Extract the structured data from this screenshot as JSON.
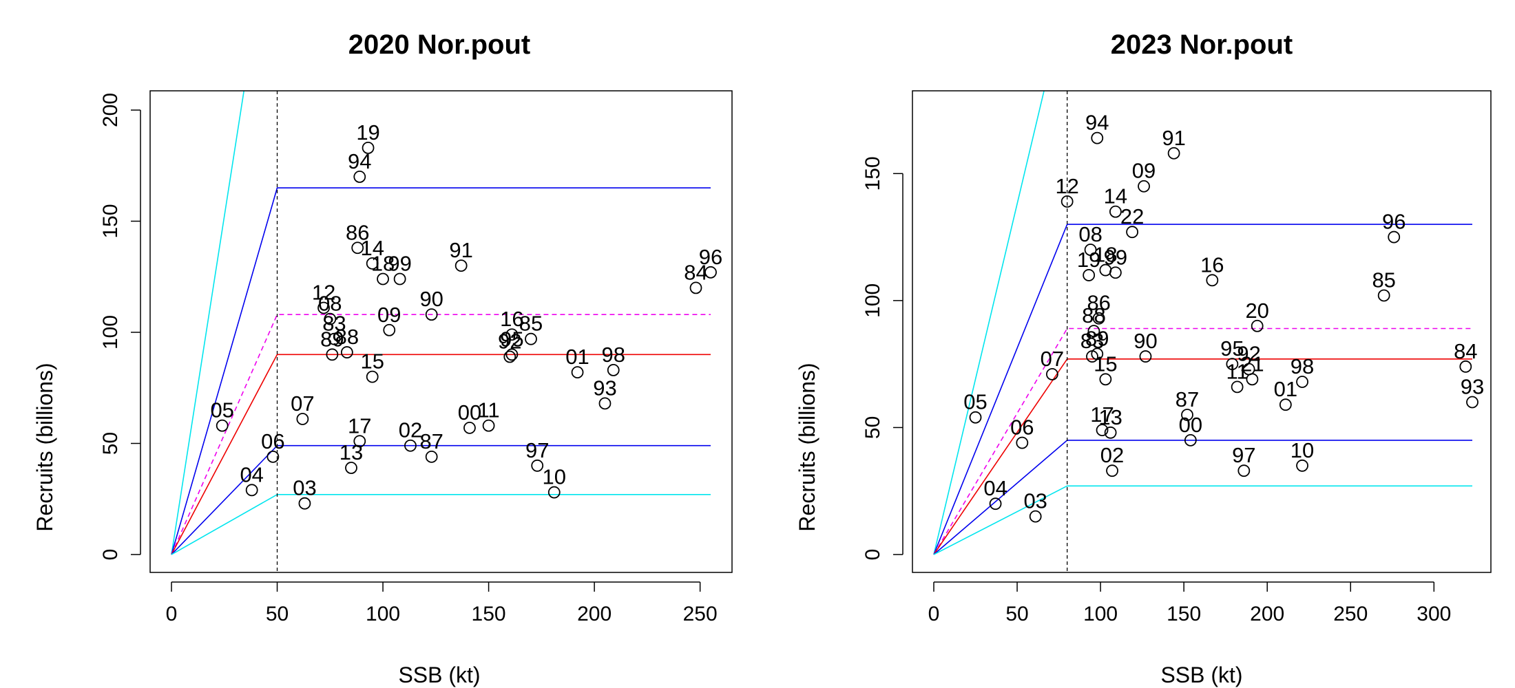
{
  "chart_data": [
    {
      "type": "scatter",
      "title": "2020 Nor.pout",
      "xlabel": "SSB (kt)",
      "ylabel": "Recruits (billions)",
      "xlim": [
        0,
        255
      ],
      "ylim": [
        0,
        200
      ],
      "xticks": [
        0,
        50,
        100,
        150,
        200,
        250
      ],
      "yticks": [
        0,
        50,
        100,
        150,
        200
      ],
      "breakpoint_ssb": 50,
      "points": [
        {
          "label": "19",
          "x": 93,
          "y": 183
        },
        {
          "label": "94",
          "x": 89,
          "y": 170
        },
        {
          "label": "86",
          "x": 88,
          "y": 138
        },
        {
          "label": "14",
          "x": 95,
          "y": 131
        },
        {
          "label": "18",
          "x": 100,
          "y": 124
        },
        {
          "label": "99",
          "x": 108,
          "y": 124
        },
        {
          "label": "91",
          "x": 137,
          "y": 130
        },
        {
          "label": "84",
          "x": 248,
          "y": 120
        },
        {
          "label": "96",
          "x": 255,
          "y": 127
        },
        {
          "label": "12",
          "x": 72,
          "y": 111
        },
        {
          "label": "08",
          "x": 75,
          "y": 106
        },
        {
          "label": "90",
          "x": 123,
          "y": 108
        },
        {
          "label": "16",
          "x": 161,
          "y": 99
        },
        {
          "label": "85",
          "x": 170,
          "y": 97
        },
        {
          "label": "09",
          "x": 103,
          "y": 101
        },
        {
          "label": "83",
          "x": 77,
          "y": 97
        },
        {
          "label": "88",
          "x": 83,
          "y": 91
        },
        {
          "label": "89",
          "x": 76,
          "y": 90
        },
        {
          "label": "92",
          "x": 160,
          "y": 89
        },
        {
          "label": "95",
          "x": 161,
          "y": 90
        },
        {
          "label": "15",
          "x": 95,
          "y": 80
        },
        {
          "label": "98",
          "x": 209,
          "y": 83
        },
        {
          "label": "01",
          "x": 192,
          "y": 82
        },
        {
          "label": "93",
          "x": 205,
          "y": 68
        },
        {
          "label": "05",
          "x": 24,
          "y": 58
        },
        {
          "label": "07",
          "x": 62,
          "y": 61
        },
        {
          "label": "00",
          "x": 141,
          "y": 57
        },
        {
          "label": "11",
          "x": 150,
          "y": 58
        },
        {
          "label": "06",
          "x": 48,
          "y": 44
        },
        {
          "label": "17",
          "x": 89,
          "y": 51
        },
        {
          "label": "02",
          "x": 113,
          "y": 49
        },
        {
          "label": "87",
          "x": 123,
          "y": 44
        },
        {
          "label": "13",
          "x": 85,
          "y": 39
        },
        {
          "label": "97",
          "x": 173,
          "y": 40
        },
        {
          "label": "04",
          "x": 38,
          "y": 29
        },
        {
          "label": "03",
          "x": 63,
          "y": 23
        },
        {
          "label": "10",
          "x": 181,
          "y": 28
        }
      ],
      "lines": [
        {
          "color": "#00e5ee",
          "dash": false,
          "points": [
            [
              0,
              0
            ],
            [
              34.5,
              210
            ]
          ]
        },
        {
          "color": "#0000ee",
          "dash": false,
          "points": [
            [
              0,
              0
            ],
            [
              50,
              165
            ],
            [
              255,
              165
            ]
          ]
        },
        {
          "color": "#ee00ee",
          "dash": true,
          "points": [
            [
              0,
              0
            ],
            [
              50,
              108
            ],
            [
              255,
              108
            ]
          ]
        },
        {
          "color": "#ee0000",
          "dash": false,
          "points": [
            [
              0,
              0
            ],
            [
              50,
              90
            ],
            [
              255,
              90
            ]
          ]
        },
        {
          "color": "#0000ee",
          "dash": false,
          "points": [
            [
              0,
              0
            ],
            [
              50,
              49
            ],
            [
              255,
              49
            ]
          ]
        },
        {
          "color": "#00e5ee",
          "dash": false,
          "points": [
            [
              0,
              0
            ],
            [
              50,
              27
            ],
            [
              255,
              27
            ]
          ]
        }
      ]
    },
    {
      "type": "scatter",
      "title": "2023 Nor.pout",
      "xlabel": "SSB (kt)",
      "ylabel": "Recruits (billions)",
      "xlim": [
        0,
        323
      ],
      "ylim": [
        0,
        175
      ],
      "xticks": [
        0,
        50,
        100,
        150,
        200,
        250,
        300
      ],
      "yticks": [
        0,
        50,
        100,
        150
      ],
      "breakpoint_ssb": 80,
      "points": [
        {
          "label": "94",
          "x": 98,
          "y": 164
        },
        {
          "label": "91",
          "x": 144,
          "y": 158
        },
        {
          "label": "12",
          "x": 80,
          "y": 139
        },
        {
          "label": "09",
          "x": 126,
          "y": 145
        },
        {
          "label": "14",
          "x": 109,
          "y": 135
        },
        {
          "label": "22",
          "x": 119,
          "y": 127
        },
        {
          "label": "08",
          "x": 94,
          "y": 120
        },
        {
          "label": "18",
          "x": 103,
          "y": 112
        },
        {
          "label": "19",
          "x": 93,
          "y": 110
        },
        {
          "label": "99",
          "x": 109,
          "y": 111
        },
        {
          "label": "16",
          "x": 167,
          "y": 108
        },
        {
          "label": "96",
          "x": 276,
          "y": 125
        },
        {
          "label": "85",
          "x": 270,
          "y": 102
        },
        {
          "label": "86",
          "x": 99,
          "y": 93
        },
        {
          "label": "88",
          "x": 96,
          "y": 88
        },
        {
          "label": "83",
          "x": 95,
          "y": 78
        },
        {
          "label": "89",
          "x": 98,
          "y": 79
        },
        {
          "label": "90",
          "x": 127,
          "y": 78
        },
        {
          "label": "20",
          "x": 194,
          "y": 90
        },
        {
          "label": "07",
          "x": 71,
          "y": 71
        },
        {
          "label": "15",
          "x": 103,
          "y": 69
        },
        {
          "label": "95",
          "x": 179,
          "y": 75
        },
        {
          "label": "92",
          "x": 189,
          "y": 73
        },
        {
          "label": "21",
          "x": 191,
          "y": 69
        },
        {
          "label": "11",
          "x": 182,
          "y": 66
        },
        {
          "label": "84",
          "x": 319,
          "y": 74
        },
        {
          "label": "93",
          "x": 323,
          "y": 60
        },
        {
          "label": "98",
          "x": 221,
          "y": 68
        },
        {
          "label": "01",
          "x": 211,
          "y": 59
        },
        {
          "label": "05",
          "x": 25,
          "y": 54
        },
        {
          "label": "87",
          "x": 152,
          "y": 55
        },
        {
          "label": "00",
          "x": 154,
          "y": 45
        },
        {
          "label": "06",
          "x": 53,
          "y": 44
        },
        {
          "label": "17",
          "x": 101,
          "y": 49
        },
        {
          "label": "13",
          "x": 106,
          "y": 48
        },
        {
          "label": "02",
          "x": 107,
          "y": 33
        },
        {
          "label": "97",
          "x": 186,
          "y": 33
        },
        {
          "label": "10",
          "x": 221,
          "y": 35
        },
        {
          "label": "04",
          "x": 37,
          "y": 20
        },
        {
          "label": "03",
          "x": 61,
          "y": 15
        }
      ],
      "lines": [
        {
          "color": "#00e5ee",
          "dash": false,
          "points": [
            [
              0,
              0
            ],
            [
              67,
              185
            ]
          ]
        },
        {
          "color": "#0000ee",
          "dash": false,
          "points": [
            [
              0,
              0
            ],
            [
              80,
              130
            ],
            [
              323,
              130
            ]
          ]
        },
        {
          "color": "#ee00ee",
          "dash": true,
          "points": [
            [
              0,
              0
            ],
            [
              80,
              89
            ],
            [
              323,
              89
            ]
          ]
        },
        {
          "color": "#ee0000",
          "dash": false,
          "points": [
            [
              0,
              0
            ],
            [
              80,
              77
            ],
            [
              323,
              77
            ]
          ]
        },
        {
          "color": "#0000ee",
          "dash": false,
          "points": [
            [
              0,
              0
            ],
            [
              80,
              45
            ],
            [
              323,
              45
            ]
          ]
        },
        {
          "color": "#00e5ee",
          "dash": false,
          "points": [
            [
              0,
              0
            ],
            [
              80,
              27
            ],
            [
              323,
              27
            ]
          ]
        }
      ]
    }
  ]
}
